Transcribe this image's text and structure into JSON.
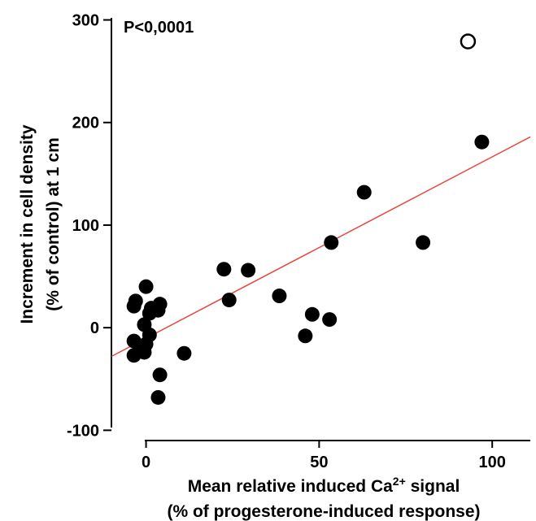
{
  "chart_data": {
    "type": "scatter",
    "annotation": "P<0,0001",
    "xlabel": {
      "prefix": "Mean relative induced Ca",
      "superscript": "2+",
      "suffix": " signal",
      "line2": "(% of progesterone-induced response)"
    },
    "ylabel": {
      "line1": "Increment in cell density",
      "line2": "(% of control) at 1 cm"
    },
    "xlim": [
      -10,
      111
    ],
    "ylim": [
      -110,
      302
    ],
    "x_ticks": [
      0,
      50,
      100
    ],
    "x_tick_labels": [
      "0",
      "50",
      "100"
    ],
    "y_ticks": [
      -100,
      0,
      100,
      200,
      300
    ],
    "y_tick_labels": [
      "-100",
      "0",
      "100",
      "200",
      "300"
    ],
    "grid": false,
    "legend": "none",
    "points": [
      {
        "x": -3.5,
        "y": 21
      },
      {
        "x": -3,
        "y": 26
      },
      {
        "x": -3.5,
        "y": -13
      },
      {
        "x": -3.5,
        "y": -27
      },
      {
        "x": -1.5,
        "y": -22
      },
      {
        "x": -0.5,
        "y": 3
      },
      {
        "x": 0,
        "y": 40
      },
      {
        "x": -0.5,
        "y": -24
      },
      {
        "x": 0,
        "y": -16
      },
      {
        "x": 1,
        "y": 14
      },
      {
        "x": 1,
        "y": -7
      },
      {
        "x": 1.5,
        "y": 19
      },
      {
        "x": 3.5,
        "y": 17
      },
      {
        "x": 4,
        "y": 23
      },
      {
        "x": 4,
        "y": -46
      },
      {
        "x": 3.5,
        "y": -68
      },
      {
        "x": 11,
        "y": -25
      },
      {
        "x": 22.5,
        "y": 57
      },
      {
        "x": 24,
        "y": 27
      },
      {
        "x": 29.5,
        "y": 56
      },
      {
        "x": 38.5,
        "y": 31
      },
      {
        "x": 46,
        "y": -8
      },
      {
        "x": 48,
        "y": 13
      },
      {
        "x": 53,
        "y": 8
      },
      {
        "x": 53.5,
        "y": 83
      },
      {
        "x": 63,
        "y": 132
      },
      {
        "x": 80,
        "y": 83
      },
      {
        "x": 97,
        "y": 181
      }
    ],
    "outlier_points": [
      {
        "x": 93,
        "y": 279
      }
    ],
    "regression_line": {
      "x": [
        -10,
        111
      ],
      "y": [
        -28,
        186
      ],
      "color": "#e8463a"
    },
    "colors": {
      "point": "#000000",
      "line": "#e8463a"
    }
  }
}
